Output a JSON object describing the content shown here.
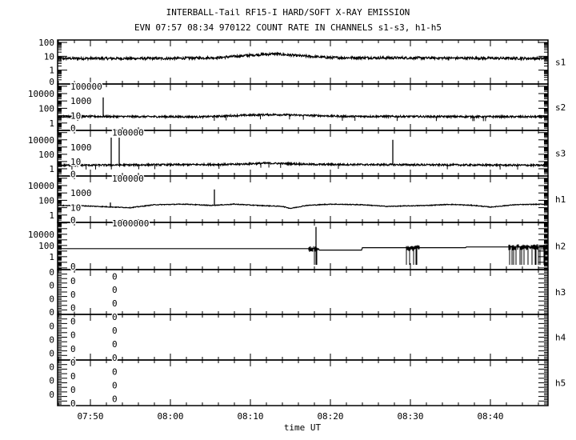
{
  "chart_data": {
    "type": "line",
    "title": "INTERBALL-Tail RF15-I HARD/SOFT X-RAY EMISSION",
    "subtitle": "EVN 07:57 08:34 970122  COUNT RATE IN CHANNELS s1-s3, h1-h5",
    "xlabel": "time UT",
    "xlim": [
      "07:45.9",
      "08:47.2"
    ],
    "x_ticks": [
      "07:50",
      "08:00",
      "08:10",
      "08:20",
      "08:30",
      "08:40"
    ],
    "y_scale": "log",
    "grid": false,
    "panels": [
      {
        "name": "s1",
        "ylim": [
          0.1,
          150
        ],
        "y_ticks": [
          {
            "v": 100,
            "label": "100"
          },
          {
            "v": 10,
            "label": "10"
          },
          {
            "v": 1,
            "label": "1"
          },
          {
            "v": 0.15,
            "label": "0"
          }
        ],
        "baseline": [
          [
            "07:46",
            7
          ],
          [
            "08:00",
            7
          ],
          [
            "08:06",
            8
          ],
          [
            "08:10",
            12
          ],
          [
            "08:13",
            15
          ],
          [
            "08:16",
            11
          ],
          [
            "08:20",
            8
          ],
          [
            "08:47",
            7
          ]
        ],
        "spikes": [],
        "bursts": []
      },
      {
        "name": "s2",
        "ylim": [
          0.1,
          200000
        ],
        "y_ticks": [
          {
            "v": 100000,
            "label": "100000"
          },
          {
            "v": 10000,
            "label": "10000"
          },
          {
            "v": 1000,
            "label": "1000"
          },
          {
            "v": 100,
            "label": "100"
          },
          {
            "v": 10,
            "label": "10"
          },
          {
            "v": 1,
            "label": "1"
          },
          {
            "v": 0.2,
            "label": "0"
          }
        ],
        "baseline": [
          [
            "07:46",
            8
          ],
          [
            "08:04",
            7
          ],
          [
            "08:10",
            12
          ],
          [
            "08:13",
            14
          ],
          [
            "08:17",
            11
          ],
          [
            "08:22",
            8
          ],
          [
            "08:47",
            7
          ]
        ],
        "spikes": [
          [
            "07:51.6",
            3000
          ]
        ],
        "bursts": []
      },
      {
        "name": "s3",
        "ylim": [
          0.1,
          200000
        ],
        "y_ticks": [
          {
            "v": 100000,
            "label": "100000"
          },
          {
            "v": 10000,
            "label": "10000"
          },
          {
            "v": 1000,
            "label": "1000"
          },
          {
            "v": 100,
            "label": "100"
          },
          {
            "v": 10,
            "label": "10"
          },
          {
            "v": 1,
            "label": "1"
          },
          {
            "v": 0.2,
            "label": "0"
          }
        ],
        "baseline": [
          [
            "07:46",
            3
          ],
          [
            "08:08",
            4
          ],
          [
            "08:12",
            6
          ],
          [
            "08:18",
            4
          ],
          [
            "08:47",
            3
          ]
        ],
        "spikes": [
          [
            "07:52.6",
            20000
          ],
          [
            "07:53.6",
            20000
          ],
          [
            "08:27.8",
            10000
          ]
        ],
        "bursts": []
      },
      {
        "name": "h1",
        "ylim": [
          0.1,
          200000
        ],
        "y_ticks": [
          {
            "v": 100000,
            "label": "100000"
          },
          {
            "v": 10000,
            "label": "10000"
          },
          {
            "v": 1000,
            "label": "1000"
          },
          {
            "v": 100,
            "label": "100"
          },
          {
            "v": 10,
            "label": "10"
          },
          {
            "v": 1,
            "label": "1"
          },
          {
            "v": 0.2,
            "label": "0"
          }
        ],
        "baseline": [
          [
            "07:46",
            20
          ],
          [
            "07:49",
            18
          ],
          [
            "07:53",
            12
          ],
          [
            "07:55",
            10
          ],
          [
            "07:58",
            25
          ],
          [
            "08:02",
            30
          ],
          [
            "08:05",
            20
          ],
          [
            "08:08",
            30
          ],
          [
            "08:11",
            20
          ],
          [
            "08:14",
            15
          ],
          [
            "08:15",
            8
          ],
          [
            "08:17",
            20
          ],
          [
            "08:20",
            30
          ],
          [
            "08:24",
            25
          ],
          [
            "08:27",
            15
          ],
          [
            "08:32",
            20
          ],
          [
            "08:35",
            28
          ],
          [
            "08:38",
            20
          ],
          [
            "08:40",
            12
          ],
          [
            "08:43",
            25
          ],
          [
            "08:47",
            30
          ]
        ],
        "spikes": [
          [
            "07:52.5",
            50
          ],
          [
            "08:05.5",
            3000
          ]
        ],
        "bursts": []
      },
      {
        "name": "h2",
        "ylim": [
          0.005,
          1300000
        ],
        "y_ticks": [
          {
            "v": 1000000,
            "label": "1000000"
          },
          {
            "v": 10000,
            "label": "10000"
          },
          {
            "v": 100,
            "label": "100"
          },
          {
            "v": 1,
            "label": "1"
          },
          {
            "v": 0.02,
            "label": "0"
          }
        ],
        "baseline": [
          [
            "07:46",
            27
          ],
          [
            "08:18.5",
            27
          ],
          [
            "08:18.6",
            15
          ],
          [
            "08:23.9",
            15
          ],
          [
            "08:24",
            40
          ],
          [
            "08:36.9",
            40
          ],
          [
            "08:37",
            55
          ],
          [
            "08:47",
            55
          ]
        ],
        "spikes": [
          [
            "08:18.2",
            200000
          ]
        ],
        "bursts": [
          [
            "08:17.3",
            "08:18.5"
          ],
          [
            "08:29.5",
            "08:31.2"
          ],
          [
            "08:42.3",
            "08:47.2"
          ]
        ]
      },
      {
        "name": "h3",
        "ylim": [
          0,
          1
        ],
        "y_ticks": [
          {
            "label": "0"
          },
          {
            "label": "0"
          },
          {
            "label": "0"
          },
          {
            "label": "0"
          },
          {
            "label": "0"
          },
          {
            "label": "0"
          },
          {
            "label": "0"
          },
          {
            "label": "0"
          },
          {
            "label": "0"
          },
          {
            "label": "0"
          }
        ],
        "baseline": [],
        "spikes": [],
        "bursts": []
      },
      {
        "name": "h4",
        "ylim": [
          0,
          1
        ],
        "y_ticks": [
          {
            "label": "0"
          },
          {
            "label": "0"
          },
          {
            "label": "0"
          },
          {
            "label": "0"
          },
          {
            "label": "0"
          },
          {
            "label": "0"
          },
          {
            "label": "0"
          },
          {
            "label": "0"
          },
          {
            "label": "0"
          },
          {
            "label": "0"
          }
        ],
        "baseline": [],
        "spikes": [],
        "bursts": []
      },
      {
        "name": "h5",
        "ylim": [
          0,
          1
        ],
        "y_ticks": [
          {
            "label": "0"
          },
          {
            "label": "0"
          },
          {
            "label": "0"
          },
          {
            "label": "0"
          },
          {
            "label": "0"
          },
          {
            "label": "0"
          },
          {
            "label": "0"
          },
          {
            "label": "0"
          },
          {
            "label": "0"
          },
          {
            "label": "0"
          }
        ],
        "baseline": [],
        "spikes": [],
        "bursts": []
      }
    ]
  }
}
